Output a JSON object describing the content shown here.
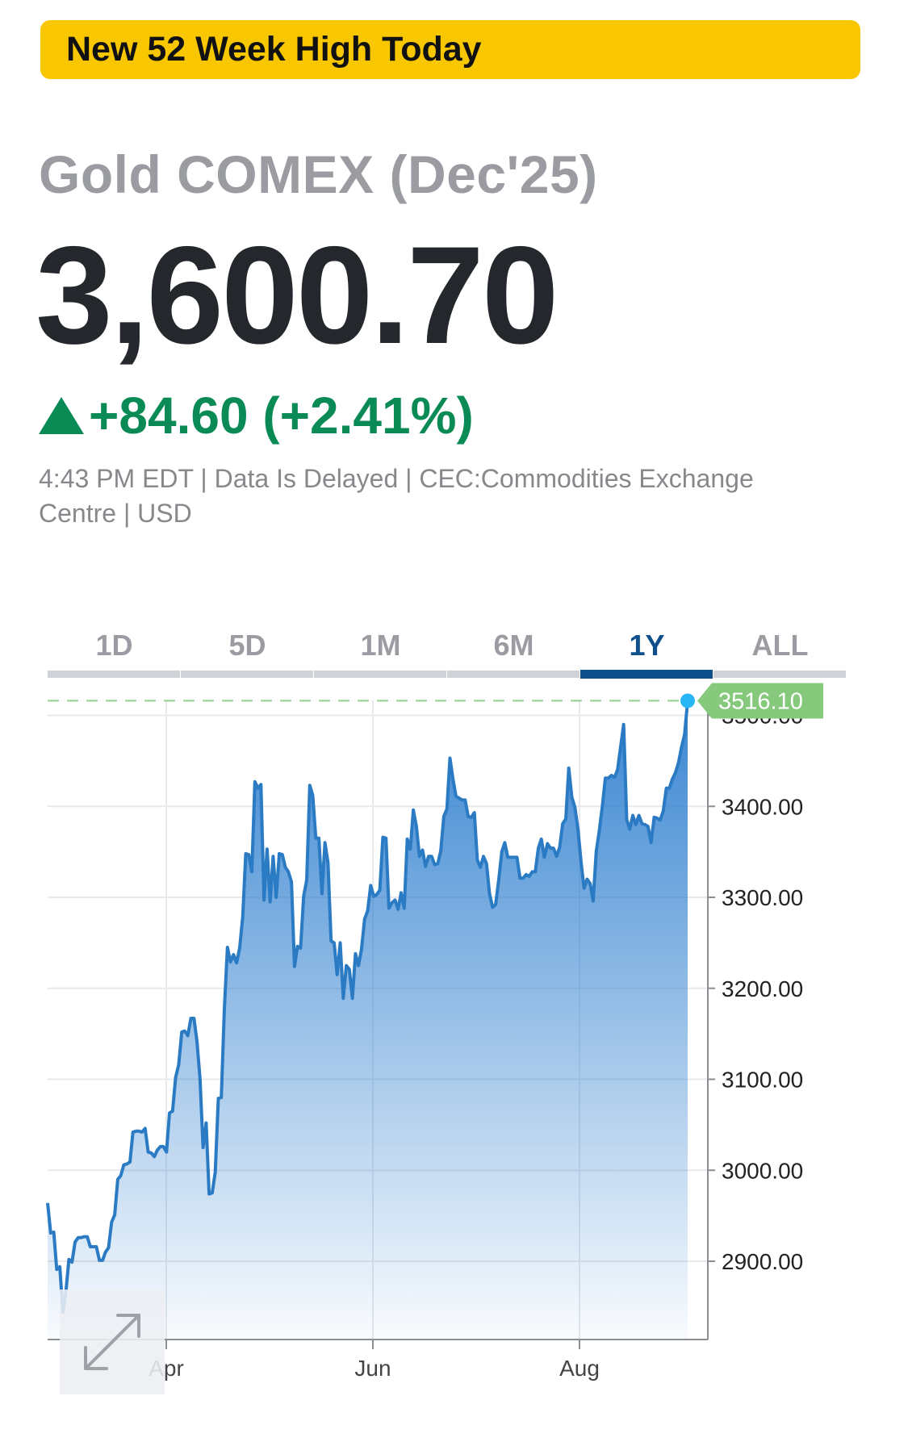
{
  "banner": {
    "text": "New 52 Week High Today",
    "color": "#f9c700"
  },
  "quote": {
    "instrument": "Gold COMEX (Dec'25)",
    "last_price": "3,600.70",
    "change": "+84.60 (+2.41%)",
    "change_color": "#0a8a55",
    "meta": "4:43 PM EDT | Data Is Delayed | CEC:Commodities Exchange Centre | USD"
  },
  "range_tabs": {
    "items": [
      "1D",
      "5D",
      "1M",
      "6M",
      "1Y",
      "ALL"
    ],
    "active": "1Y"
  },
  "expand_icon": "expand-arrows-icon",
  "chart_data": {
    "type": "area",
    "title": "",
    "xlabel": "",
    "ylabel": "",
    "ylim": [
      2819,
      3516
    ],
    "y_ticks": [
      2900,
      3000,
      3100,
      3200,
      3300,
      3400,
      3500
    ],
    "y_tick_labels": [
      "2900.00",
      "3000.00",
      "3100.00",
      "3200.00",
      "3300.00",
      "3400.00",
      "3500.00"
    ],
    "x_ticks": [
      "Apr",
      "Jun",
      "Aug"
    ],
    "last_value_label": "3516.10",
    "reference_line": 3516.1,
    "line_color": "#2a7bc4",
    "label_color": "#86c97c",
    "grid": true,
    "series": [
      {
        "values": [
          2964,
          2931,
          2932,
          2891,
          2894,
          2844,
          2867,
          2902,
          2899,
          2921,
          2926,
          2926,
          2927,
          2927,
          2916,
          2916,
          2916,
          2901,
          2901,
          2910,
          2915,
          2943,
          2951,
          2990,
          2994,
          3006,
          3007,
          3009,
          3042,
          3043,
          3043,
          3042,
          3046,
          3020,
          3019,
          3015,
          3022,
          3026,
          3026,
          3020,
          3063,
          3065,
          3102,
          3116,
          3152,
          3153,
          3148,
          3167,
          3167,
          3142,
          3101,
          3025,
          3052,
          2974,
          2975,
          2998,
          3079,
          3080,
          3178,
          3245,
          3229,
          3237,
          3228,
          3244,
          3278,
          3348,
          3347,
          3328,
          3427,
          3420,
          3424,
          3297,
          3353,
          3295,
          3345,
          3300,
          3348,
          3347,
          3333,
          3328,
          3317,
          3224,
          3246,
          3244,
          3301,
          3319,
          3423,
          3412,
          3365,
          3365,
          3304,
          3360,
          3338,
          3252,
          3250,
          3215,
          3250,
          3189,
          3225,
          3221,
          3189,
          3238,
          3225,
          3243,
          3276,
          3285,
          3313,
          3301,
          3303,
          3308,
          3366,
          3365,
          3288,
          3294,
          3297,
          3287,
          3305,
          3288,
          3364,
          3353,
          3396,
          3378,
          3345,
          3352,
          3334,
          3345,
          3345,
          3336,
          3337,
          3351,
          3389,
          3397,
          3453,
          3430,
          3411,
          3409,
          3407,
          3407,
          3389,
          3388,
          3393,
          3341,
          3333,
          3345,
          3337,
          3304,
          3289,
          3292,
          3319,
          3350,
          3360,
          3344,
          3344,
          3344,
          3344,
          3321,
          3321,
          3325,
          3323,
          3328,
          3328,
          3354,
          3364,
          3344,
          3359,
          3354,
          3354,
          3345,
          3355,
          3381,
          3386,
          3442,
          3410,
          3399,
          3375,
          3340,
          3310,
          3320,
          3315,
          3296,
          3350,
          3373,
          3400,
          3431,
          3431,
          3434,
          3432,
          3440,
          3465,
          3490,
          3385,
          3375,
          3390,
          3380,
          3390,
          3381,
          3380,
          3378,
          3360,
          3388,
          3387,
          3385,
          3395,
          3420,
          3420,
          3430,
          3437,
          3448,
          3465,
          3479,
          3516
        ]
      }
    ]
  }
}
